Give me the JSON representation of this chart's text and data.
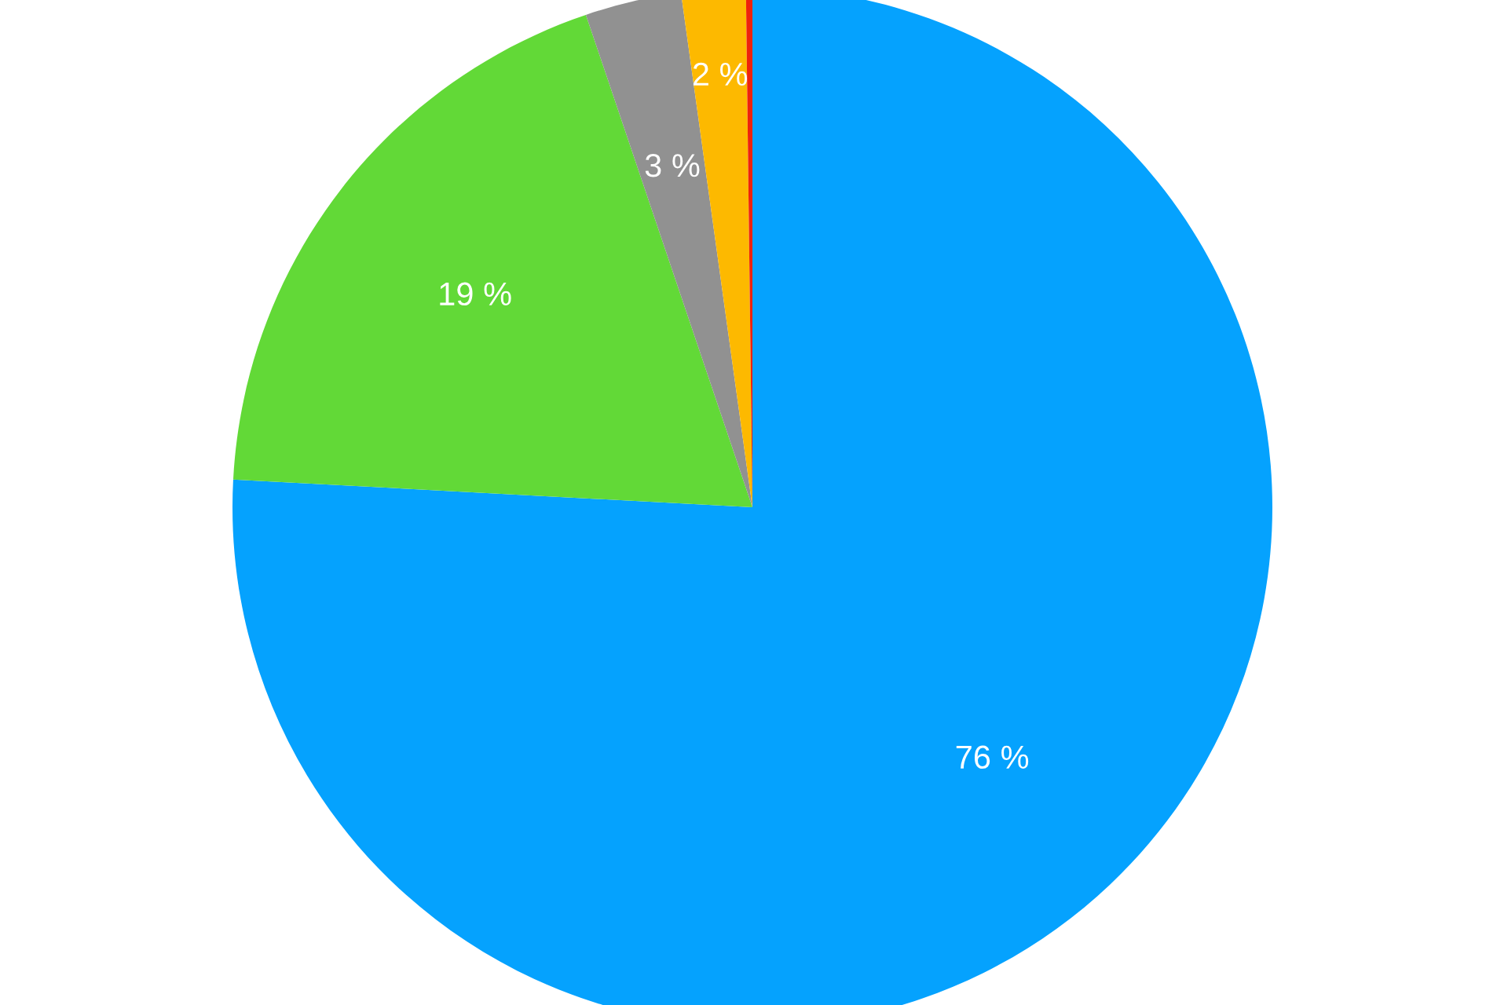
{
  "chart_data": {
    "type": "pie",
    "categories": [
      null,
      null,
      null,
      null,
      null
    ],
    "values": [
      76,
      19,
      3,
      2,
      0.2
    ],
    "value_labels": [
      "76 %",
      "19 %",
      "3 %",
      "2 %",
      null
    ],
    "colors": [
      "#05a2fe",
      "#62d937",
      "#919191",
      "#fdb900",
      "#ee220c"
    ],
    "legend": false
  }
}
